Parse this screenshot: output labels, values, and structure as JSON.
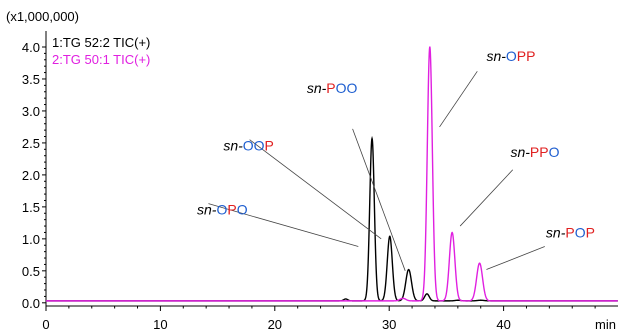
{
  "chart_data": {
    "type": "line",
    "y_multiplier_label": "(x1,000,000)",
    "xlabel_unit": "min",
    "xlim": [
      0,
      50
    ],
    "ylim": [
      -0.05,
      4.25
    ],
    "x_ticks": [
      0,
      10,
      20,
      30,
      40
    ],
    "y_ticks": [
      0.0,
      0.5,
      1.0,
      1.5,
      2.0,
      2.5,
      3.0,
      3.5,
      4.0
    ],
    "y_tick_labels": [
      "0.0",
      "0.5",
      "1.0",
      "1.5",
      "2.0",
      "2.5",
      "3.0",
      "3.5",
      "4.0"
    ],
    "baseline": 0.03,
    "series": [
      {
        "name": "1:TG 52:2 TIC(+)",
        "color": "#000000",
        "peaks": [
          {
            "x": 26.2,
            "y": 0.06,
            "width": 0.18
          },
          {
            "x": 28.5,
            "y": 2.57,
            "width": 0.2
          },
          {
            "x": 30.05,
            "y": 1.04,
            "width": 0.22
          },
          {
            "x": 31.7,
            "y": 0.52,
            "width": 0.25
          },
          {
            "x": 33.3,
            "y": 0.14,
            "width": 0.2
          },
          {
            "x": 36.0,
            "y": 0.04,
            "width": 0.25
          },
          {
            "x": 38.0,
            "y": 0.04,
            "width": 0.3
          }
        ]
      },
      {
        "name": "2:TG 50:1 TIC(+)",
        "color": "#e020e0",
        "peaks": [
          {
            "x": 28.8,
            "y": 0.03,
            "width": 0.2
          },
          {
            "x": 31.2,
            "y": 0.07,
            "width": 0.25
          },
          {
            "x": 33.55,
            "y": 4.0,
            "width": 0.22
          },
          {
            "x": 35.5,
            "y": 1.1,
            "width": 0.24
          },
          {
            "x": 37.9,
            "y": 0.62,
            "width": 0.26
          }
        ]
      }
    ],
    "annotations": [
      {
        "prefix": "sn-",
        "parts": [
          {
            "t": "O",
            "c": "blue"
          },
          {
            "t": "P",
            "c": "red"
          },
          {
            "t": "O",
            "c": "blue"
          }
        ],
        "text_x": 13.2,
        "text_y": 1.38,
        "line": [
          [
            14.2,
            1.55
          ],
          [
            27.3,
            0.88
          ]
        ]
      },
      {
        "prefix": "sn-",
        "parts": [
          {
            "t": "O",
            "c": "blue"
          },
          {
            "t": "O",
            "c": "blue"
          },
          {
            "t": "P",
            "c": "red"
          }
        ],
        "text_x": 15.5,
        "text_y": 2.38,
        "line": [
          [
            17.8,
            2.55
          ],
          [
            29.3,
            1.0
          ]
        ]
      },
      {
        "prefix": "sn-",
        "parts": [
          {
            "t": "P",
            "c": "red"
          },
          {
            "t": "O",
            "c": "blue"
          },
          {
            "t": "O",
            "c": "blue"
          }
        ],
        "text_x": 22.8,
        "text_y": 3.28,
        "line": [
          [
            26.8,
            2.72
          ],
          [
            31.4,
            0.5
          ]
        ]
      },
      {
        "prefix": "sn-",
        "parts": [
          {
            "t": "O",
            "c": "blue"
          },
          {
            "t": "P",
            "c": "red"
          },
          {
            "t": "P",
            "c": "red"
          }
        ],
        "text_x": 38.5,
        "text_y": 3.78,
        "line": [
          [
            37.7,
            3.62
          ],
          [
            34.4,
            2.75
          ]
        ]
      },
      {
        "prefix": "sn-",
        "parts": [
          {
            "t": "P",
            "c": "red"
          },
          {
            "t": "P",
            "c": "red"
          },
          {
            "t": "O",
            "c": "blue"
          }
        ],
        "text_x": 40.6,
        "text_y": 2.28,
        "line": [
          [
            40.8,
            2.08
          ],
          [
            36.2,
            1.2
          ]
        ]
      },
      {
        "prefix": "sn-",
        "parts": [
          {
            "t": "P",
            "c": "red"
          },
          {
            "t": "O",
            "c": "blue"
          },
          {
            "t": "P",
            "c": "red"
          }
        ],
        "text_x": 43.7,
        "text_y": 1.02,
        "line": [
          [
            43.6,
            0.88
          ],
          [
            38.5,
            0.52
          ]
        ]
      }
    ],
    "colors": {
      "blue": "#1f5fd0",
      "red": "#e02020",
      "axis": "#000000",
      "text": "#000000"
    }
  }
}
